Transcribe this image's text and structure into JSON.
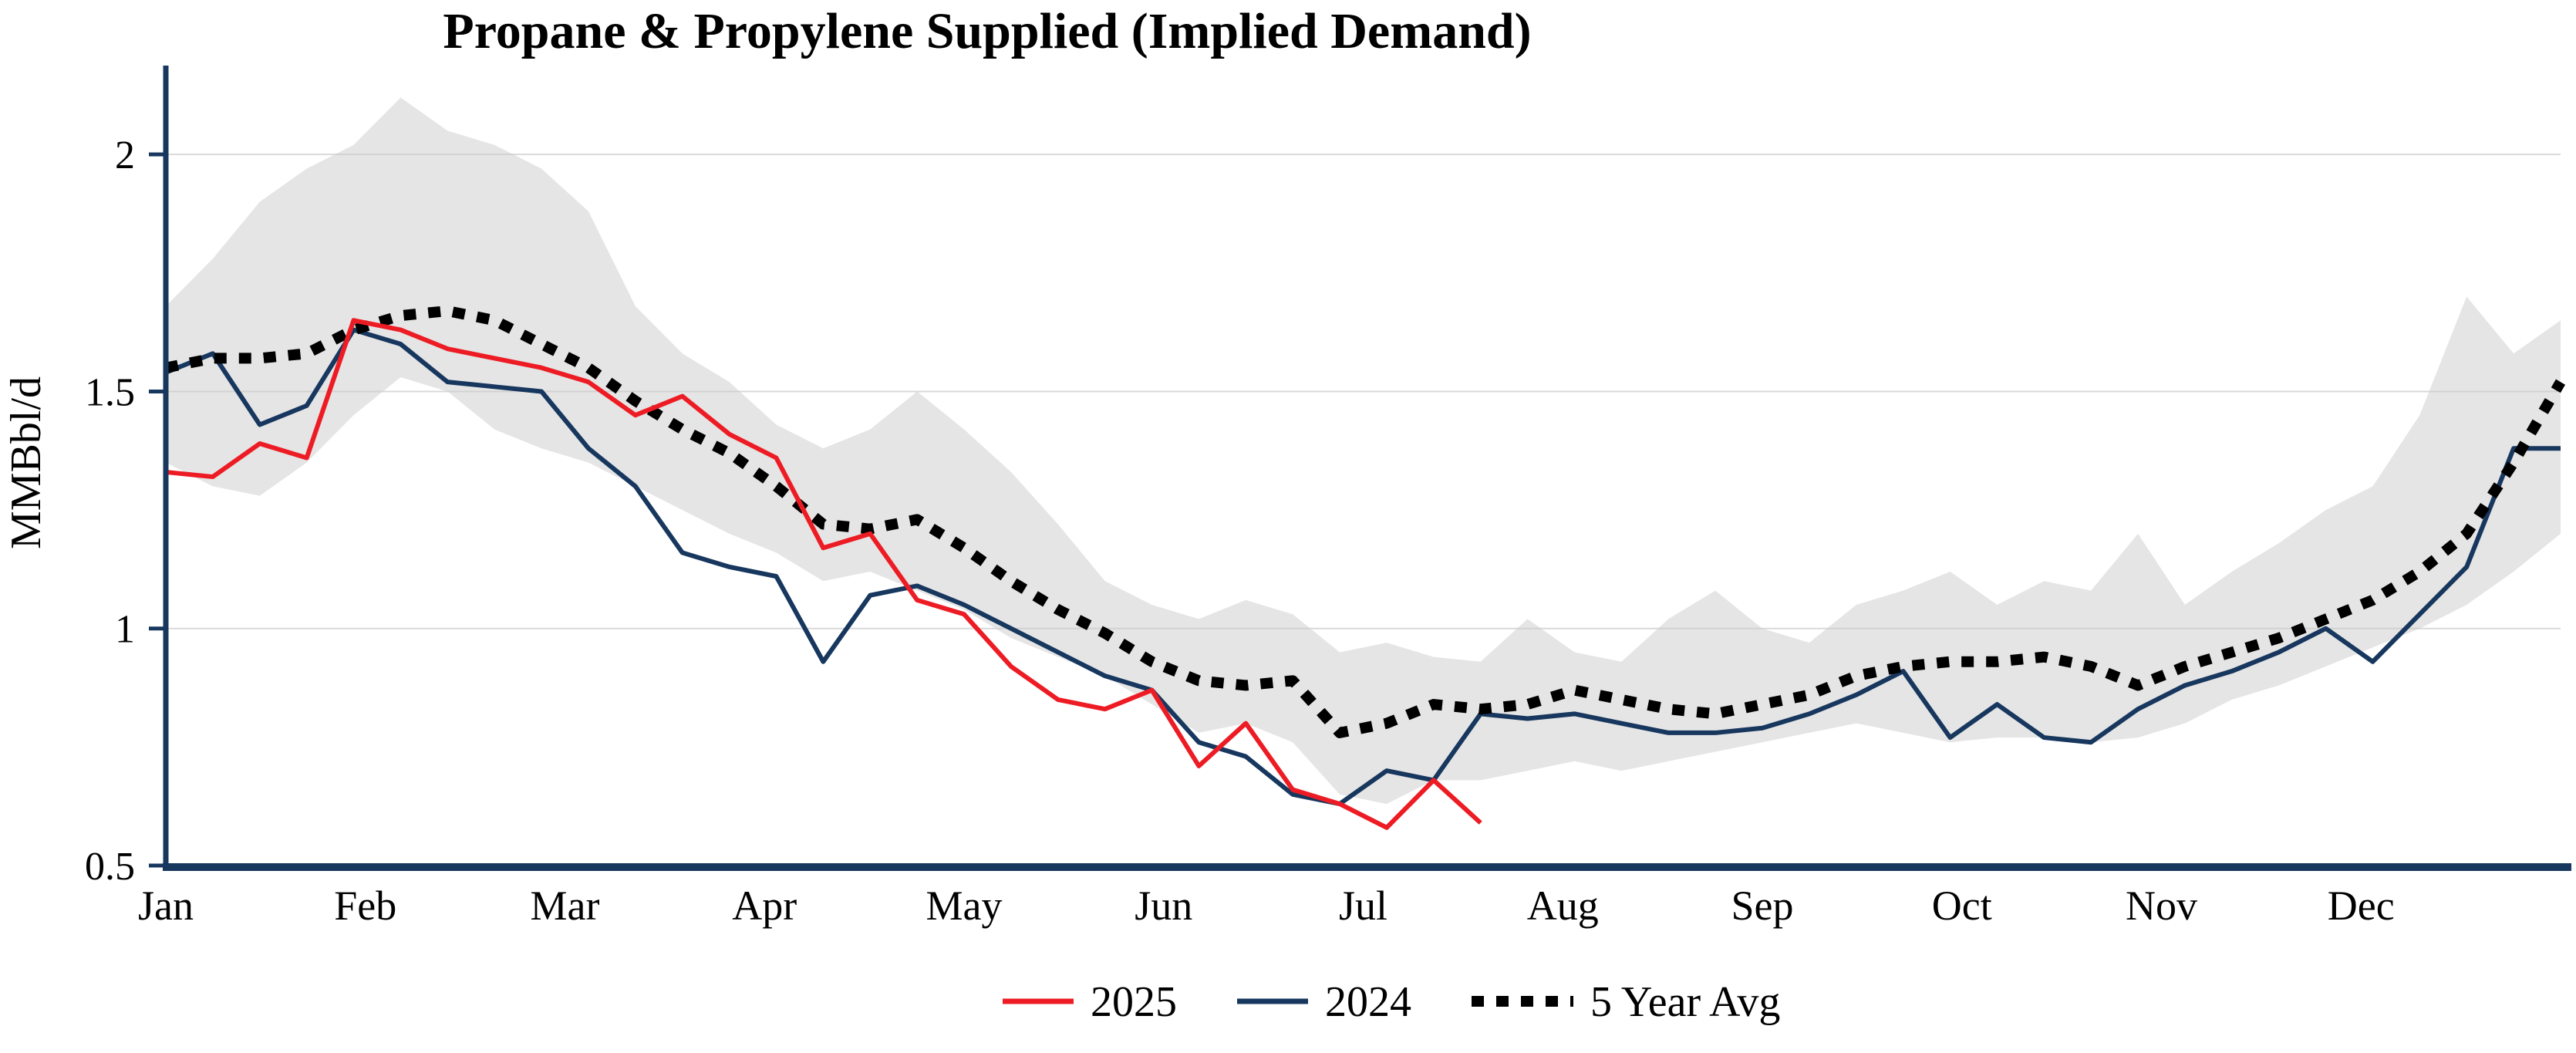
{
  "chart_data": {
    "type": "line",
    "title": "Propane & Propylene Supplied (Implied Demand)",
    "ylabel": "MMBbl/d",
    "ylim": [
      0.5,
      2.15
    ],
    "yticks": [
      0.5,
      1,
      1.5,
      2
    ],
    "gridlines": [
      1,
      1.5,
      2
    ],
    "x_unit": "week",
    "weeks": 52,
    "months": [
      "Jan",
      "Feb",
      "Mar",
      "Apr",
      "May",
      "Jun",
      "Jul",
      "Aug",
      "Sep",
      "Oct",
      "Nov",
      "Dec"
    ],
    "legend": {
      "position": "bottom",
      "items": [
        "2025",
        "2024",
        "5 Year Avg"
      ]
    },
    "colors": {
      "red": "#ed1c24",
      "navy": "#17375e",
      "avg": "#000000",
      "band": "#cccccc",
      "grid": "#d9d9d9",
      "axis": "#17375e"
    },
    "band": {
      "upper": [
        1.68,
        1.78,
        1.9,
        1.97,
        2.02,
        2.12,
        2.05,
        2.02,
        1.97,
        1.88,
        1.68,
        1.58,
        1.52,
        1.43,
        1.38,
        1.42,
        1.5,
        1.42,
        1.33,
        1.22,
        1.1,
        1.05,
        1.02,
        1.06,
        1.03,
        0.95,
        0.97,
        0.94,
        0.93,
        1.02,
        0.95,
        0.93,
        1.02,
        1.08,
        1.0,
        0.97,
        1.05,
        1.08,
        1.12,
        1.05,
        1.1,
        1.08,
        1.2,
        1.05,
        1.12,
        1.18,
        1.25,
        1.3,
        1.45,
        1.7,
        1.58,
        1.65
      ],
      "lower": [
        1.35,
        1.3,
        1.28,
        1.35,
        1.45,
        1.53,
        1.5,
        1.42,
        1.38,
        1.35,
        1.3,
        1.25,
        1.2,
        1.16,
        1.1,
        1.12,
        1.08,
        1.04,
        0.98,
        0.94,
        0.9,
        0.84,
        0.78,
        0.8,
        0.76,
        0.65,
        0.63,
        0.68,
        0.68,
        0.7,
        0.72,
        0.7,
        0.72,
        0.74,
        0.76,
        0.78,
        0.8,
        0.78,
        0.76,
        0.77,
        0.77,
        0.76,
        0.77,
        0.8,
        0.85,
        0.88,
        0.92,
        0.96,
        1.0,
        1.05,
        1.12,
        1.2
      ]
    },
    "series": [
      {
        "name": "2024",
        "color_key": "navy",
        "style": "solid",
        "values": [
          1.54,
          1.58,
          1.43,
          1.47,
          1.63,
          1.6,
          1.52,
          1.51,
          1.5,
          1.38,
          1.3,
          1.16,
          1.13,
          1.11,
          0.93,
          1.07,
          1.09,
          1.05,
          1.0,
          0.95,
          0.9,
          0.87,
          0.76,
          0.73,
          0.65,
          0.63,
          0.7,
          0.68,
          0.82,
          0.81,
          0.82,
          0.8,
          0.78,
          0.78,
          0.79,
          0.82,
          0.86,
          0.91,
          0.77,
          0.84,
          0.77,
          0.76,
          0.83,
          0.88,
          0.91,
          0.95,
          1.0,
          0.93,
          1.03,
          1.13,
          1.38,
          1.38
        ]
      },
      {
        "name": "5 Year Avg",
        "color_key": "avg",
        "style": "dotted",
        "values": [
          1.55,
          1.57,
          1.57,
          1.58,
          1.63,
          1.66,
          1.67,
          1.65,
          1.6,
          1.55,
          1.48,
          1.42,
          1.37,
          1.3,
          1.22,
          1.21,
          1.23,
          1.17,
          1.1,
          1.04,
          0.99,
          0.93,
          0.89,
          0.88,
          0.89,
          0.78,
          0.8,
          0.84,
          0.83,
          0.84,
          0.87,
          0.85,
          0.83,
          0.82,
          0.84,
          0.86,
          0.9,
          0.92,
          0.93,
          0.93,
          0.94,
          0.92,
          0.88,
          0.92,
          0.95,
          0.98,
          1.02,
          1.06,
          1.12,
          1.2,
          1.35,
          1.52
        ]
      },
      {
        "name": "2025",
        "color_key": "red",
        "style": "solid",
        "values": [
          1.33,
          1.32,
          1.39,
          1.36,
          1.65,
          1.63,
          1.59,
          1.57,
          1.55,
          1.52,
          1.45,
          1.49,
          1.41,
          1.36,
          1.17,
          1.2,
          1.06,
          1.03,
          0.92,
          0.85,
          0.83,
          0.87,
          0.71,
          0.8,
          0.66,
          0.63,
          0.58,
          0.68,
          0.59
        ]
      }
    ]
  }
}
